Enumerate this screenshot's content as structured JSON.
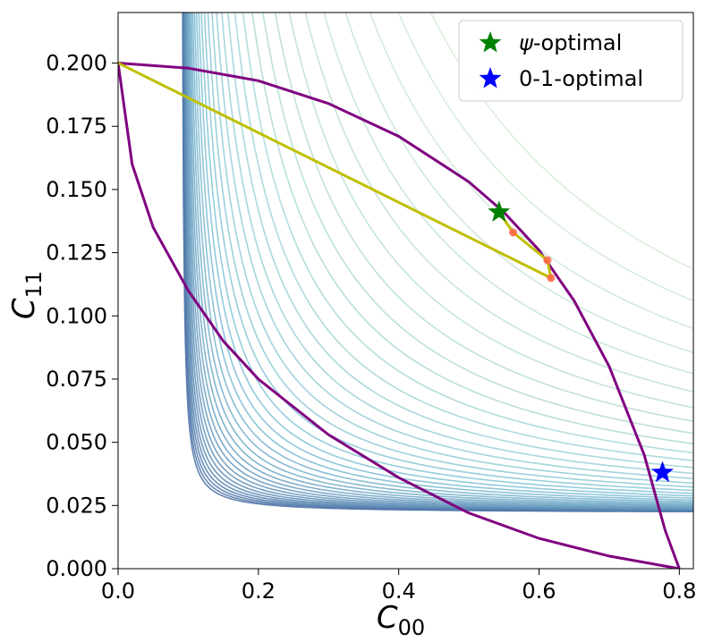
{
  "chart_data": {
    "type": "line",
    "xlabel_main": "C",
    "xlabel_sub": "00",
    "ylabel_main": "C",
    "ylabel_sub": "11",
    "xlim": [
      0.0,
      0.82
    ],
    "ylim": [
      0.0,
      0.22
    ],
    "x_ticks": [
      0.0,
      0.2,
      0.4,
      0.6,
      0.8
    ],
    "x_tick_labels": [
      "0.0",
      "0.2",
      "0.4",
      "0.6",
      "0.8"
    ],
    "y_ticks": [
      0.0,
      0.025,
      0.05,
      0.075,
      0.1,
      0.125,
      0.15,
      0.175,
      0.2
    ],
    "y_tick_labels": [
      "0.000",
      "0.025",
      "0.050",
      "0.075",
      "0.100",
      "0.125",
      "0.150",
      "0.175",
      "0.200"
    ],
    "legend_position": "top-right",
    "legend": [
      {
        "symbol": "ψ",
        "label": "-optimal",
        "color": "#008000"
      },
      {
        "symbol": "",
        "label": "0-1-optimal",
        "color": "#0000ff"
      }
    ],
    "boundary": {
      "color": "#800080",
      "outer": [
        [
          0.0,
          0.2
        ],
        [
          0.1,
          0.198
        ],
        [
          0.2,
          0.193
        ],
        [
          0.3,
          0.184
        ],
        [
          0.4,
          0.171
        ],
        [
          0.5,
          0.153
        ],
        [
          0.55,
          0.141
        ],
        [
          0.6,
          0.126
        ],
        [
          0.65,
          0.106
        ],
        [
          0.7,
          0.08
        ],
        [
          0.75,
          0.045
        ],
        [
          0.78,
          0.015
        ],
        [
          0.8,
          0.0
        ]
      ],
      "inner": [
        [
          0.0,
          0.2
        ],
        [
          0.02,
          0.16
        ],
        [
          0.05,
          0.135
        ],
        [
          0.1,
          0.11
        ],
        [
          0.15,
          0.09
        ],
        [
          0.2,
          0.075
        ],
        [
          0.3,
          0.053
        ],
        [
          0.4,
          0.036
        ],
        [
          0.5,
          0.022
        ],
        [
          0.6,
          0.012
        ],
        [
          0.7,
          0.005
        ],
        [
          0.8,
          0.0
        ]
      ]
    },
    "trajectory": {
      "color": "#bfbf00",
      "points": [
        [
          0.0,
          0.2
        ],
        [
          0.617,
          0.115
        ],
        [
          0.612,
          0.122
        ],
        [
          0.563,
          0.133
        ],
        [
          0.543,
          0.141
        ]
      ]
    },
    "trajectory_markers": {
      "color": "#ff6347",
      "points": [
        [
          0.617,
          0.115
        ],
        [
          0.612,
          0.122
        ],
        [
          0.563,
          0.133
        ]
      ]
    },
    "psi_optimal": {
      "x": 0.543,
      "y": 0.141,
      "color": "#008000"
    },
    "zero_one_optimal": {
      "x": 0.776,
      "y": 0.038,
      "color": "#0000ff"
    },
    "contours": {
      "count": 38,
      "asymptote_x": 0.09,
      "asymptote_y": 0.022,
      "color_start": "#4a6fa5",
      "color_mid": "#7fc3d6",
      "color_end": "#d6ecd6"
    }
  }
}
